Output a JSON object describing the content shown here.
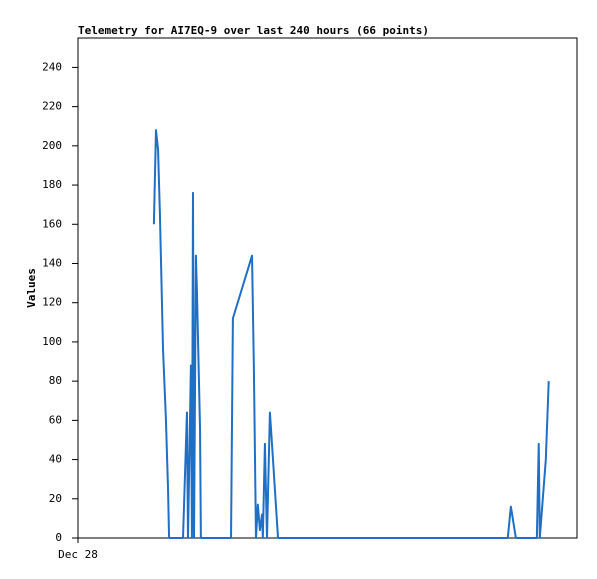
{
  "chart_data": {
    "type": "line",
    "title": "Telemetry for AI7EQ-9 over last 240 hours (66 points)",
    "y_label": "Values",
    "x": [
      36.5,
      37.5,
      38.5,
      39.4,
      40.9,
      42.3,
      43.3,
      43.8,
      47.1,
      50.5,
      52.4,
      52.9,
      54.3,
      54.8,
      55.3,
      55.8,
      56.7,
      57.2,
      58.7,
      59.1,
      63.5,
      68.3,
      73.6,
      74.5,
      83.7,
      84.6,
      85.6,
      86.5,
      87.5,
      88.5,
      88.9,
      89.9,
      90.9,
      92.3,
      93.3,
      96.2,
      101,
      105.8,
      110.6,
      115.4,
      120.2,
      125,
      129.8,
      134.6,
      139.4,
      144.2,
      149,
      153.8,
      158.7,
      163.5,
      168.3,
      173.1,
      177.9,
      182.7,
      187.5,
      192.3,
      197.1,
      206.7,
      208.2,
      210.6,
      217.3,
      220.7,
      221.6,
      222.1,
      225,
      226.4
    ],
    "series": [
      {
        "name": "Values",
        "color": "#1f6fc5",
        "values": [
          160,
          208,
          198,
          165,
          96,
          60,
          25,
          0,
          0,
          0,
          64,
          0,
          88,
          0,
          176,
          0,
          144,
          126,
          55,
          0,
          0,
          0,
          0,
          112,
          144,
          86,
          0,
          17,
          4,
          12,
          0,
          48,
          0,
          64,
          48,
          0,
          0,
          0,
          0,
          0,
          0,
          0,
          0,
          0,
          0,
          0,
          0,
          0,
          0,
          0,
          0,
          0,
          0,
          0,
          0,
          0,
          0,
          0,
          16,
          0,
          0,
          0,
          48,
          0,
          40,
          80
        ]
      }
    ],
    "xlim": [
      0,
      240
    ],
    "xticks": [
      {
        "value": 0,
        "label": "Dec 28"
      }
    ],
    "ylim": [
      0,
      255
    ],
    "yticks": [
      0,
      20,
      40,
      60,
      80,
      100,
      120,
      140,
      160,
      180,
      200,
      220,
      240
    ]
  }
}
